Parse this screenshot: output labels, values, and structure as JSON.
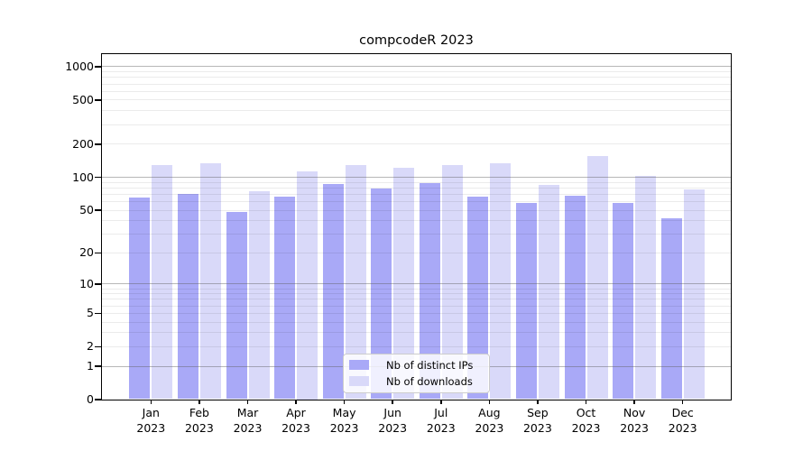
{
  "figure": {
    "title": "compcodeR 2023"
  },
  "chart_data": {
    "type": "bar",
    "title": "compcodeR 2023",
    "categories": [
      "Jan",
      "Feb",
      "Mar",
      "Apr",
      "May",
      "Jun",
      "Jul",
      "Aug",
      "Sep",
      "Oct",
      "Nov",
      "Dec"
    ],
    "category_year": "2023",
    "series": [
      {
        "name": "Nb of distinct IPs",
        "color": "#a9a9f7",
        "values": [
          65,
          70,
          48,
          66,
          86,
          78,
          88,
          66,
          58,
          67,
          58,
          42
        ]
      },
      {
        "name": "Nb of downloads",
        "color": "#d9d9f9",
        "values": [
          127,
          132,
          74,
          112,
          127,
          120,
          127,
          133,
          85,
          153,
          101,
          77
        ]
      }
    ],
    "xlabel": "",
    "ylabel": "",
    "yscale": "log10(value+1)",
    "yticks": [
      1000,
      500,
      200,
      100,
      50,
      20,
      10,
      5,
      2,
      1,
      0
    ],
    "ylim": [
      0,
      1300
    ],
    "grid": "horizontal; light minor lines, darker lines at powers of 10, drawn over bars",
    "legend_position": "bottom-center-inside",
    "colors": {
      "major_grid": "rgba(95,95,95,0.45)",
      "minor_grid": "rgba(0,0,0,0.08)",
      "axis": "#000000",
      "text": "#000000",
      "background": "#ffffff"
    }
  }
}
